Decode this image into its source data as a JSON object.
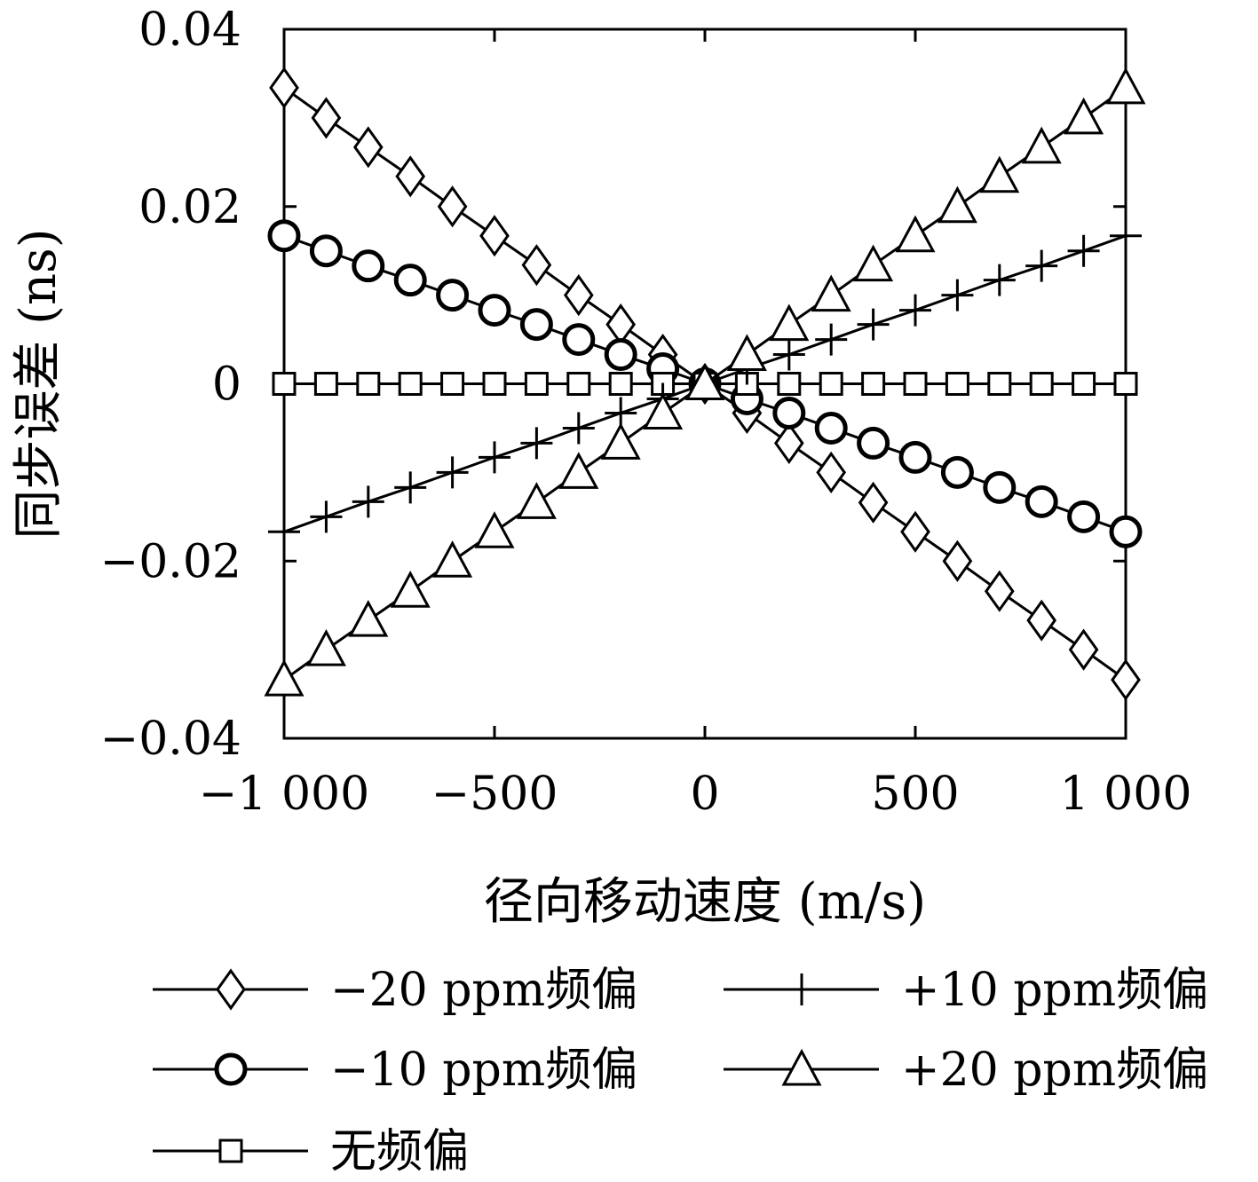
{
  "chart_data": {
    "type": "line",
    "xlabel": "径向移动速度 (m/s)",
    "ylabel": "同步误差 (ns)",
    "x": [
      -1000,
      -900,
      -800,
      -700,
      -600,
      -500,
      -400,
      -300,
      -200,
      -100,
      0,
      100,
      200,
      300,
      400,
      500,
      600,
      700,
      800,
      900,
      1000
    ],
    "xlim": [
      -1000,
      1000
    ],
    "ylim": [
      -0.04,
      0.04
    ],
    "xticks": [
      -1000,
      -500,
      0,
      500,
      1000
    ],
    "xtick_labels": [
      "−1 000",
      "−500",
      "0",
      "500",
      "1 000"
    ],
    "yticks": [
      0.04,
      0.02,
      0,
      -0.02,
      -0.04
    ],
    "ytick_labels": [
      "0.04",
      "0.02",
      "0",
      "−0.02",
      "−0.04"
    ],
    "grid": false,
    "legend_position": "bottom",
    "series": [
      {
        "name": "−20 ppm频偏",
        "marker": "diamond",
        "values": [
          0.0334,
          0.03,
          0.0267,
          0.0234,
          0.02,
          0.0167,
          0.0134,
          0.01,
          0.0067,
          0.0033,
          0,
          -0.0033,
          -0.0067,
          -0.01,
          -0.0134,
          -0.0167,
          -0.02,
          -0.0234,
          -0.0267,
          -0.03,
          -0.0334
        ]
      },
      {
        "name": "−10 ppm频偏",
        "marker": "circle",
        "values": [
          0.0167,
          0.015,
          0.0133,
          0.0117,
          0.01,
          0.0083,
          0.0067,
          0.005,
          0.0033,
          0.0017,
          0,
          -0.0017,
          -0.0033,
          -0.005,
          -0.0067,
          -0.0083,
          -0.01,
          -0.0117,
          -0.0133,
          -0.015,
          -0.0167
        ]
      },
      {
        "name": "无频偏",
        "marker": "square",
        "values": [
          0,
          0,
          0,
          0,
          0,
          0,
          0,
          0,
          0,
          0,
          0,
          0,
          0,
          0,
          0,
          0,
          0,
          0,
          0,
          0,
          0
        ]
      },
      {
        "name": "+10 ppm频偏",
        "marker": "plus",
        "values": [
          -0.0167,
          -0.015,
          -0.0133,
          -0.0117,
          -0.01,
          -0.0083,
          -0.0067,
          -0.005,
          -0.0033,
          -0.0017,
          0,
          0.0017,
          0.0033,
          0.005,
          0.0067,
          0.0083,
          0.01,
          0.0117,
          0.0133,
          0.015,
          0.0167
        ]
      },
      {
        "name": "+20 ppm频偏",
        "marker": "triangle",
        "values": [
          -0.0334,
          -0.03,
          -0.0267,
          -0.0234,
          -0.02,
          -0.0167,
          -0.0134,
          -0.01,
          -0.0067,
          -0.0033,
          0,
          0.0033,
          0.0067,
          0.01,
          0.0134,
          0.0167,
          0.02,
          0.0234,
          0.0267,
          0.03,
          0.0334
        ]
      }
    ]
  }
}
